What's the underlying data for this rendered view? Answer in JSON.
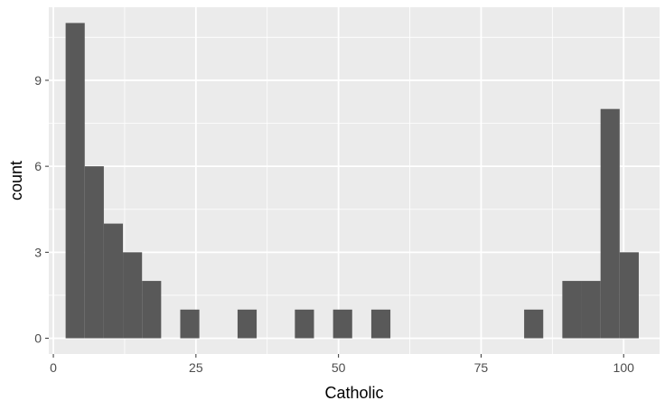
{
  "chart_data": {
    "type": "bar",
    "subtype": "histogram",
    "title": "",
    "xlabel": "Catholic",
    "ylabel": "count",
    "xlim": [
      -0.8,
      106.3
    ],
    "ylim": [
      -0.55,
      11.55
    ],
    "x_ticks": [
      0,
      25,
      50,
      75,
      100
    ],
    "y_ticks": [
      0,
      3,
      6,
      9
    ],
    "x_tick_labels": [
      "0",
      "25",
      "50",
      "75",
      "100"
    ],
    "y_tick_labels": [
      "0",
      "3",
      "6",
      "9"
    ],
    "bin_width": 3.35,
    "bins": [
      {
        "x0": 2.15,
        "x1": 5.5,
        "count": 11
      },
      {
        "x0": 5.5,
        "x1": 8.85,
        "count": 6
      },
      {
        "x0": 8.85,
        "x1": 12.2,
        "count": 4
      },
      {
        "x0": 12.2,
        "x1": 15.55,
        "count": 3
      },
      {
        "x0": 15.55,
        "x1": 18.9,
        "count": 2
      },
      {
        "x0": 22.25,
        "x1": 25.6,
        "count": 1
      },
      {
        "x0": 32.3,
        "x1": 35.65,
        "count": 1
      },
      {
        "x0": 42.35,
        "x1": 45.7,
        "count": 1
      },
      {
        "x0": 49.05,
        "x1": 52.4,
        "count": 1
      },
      {
        "x0": 55.75,
        "x1": 59.1,
        "count": 1
      },
      {
        "x0": 82.55,
        "x1": 85.9,
        "count": 1
      },
      {
        "x0": 89.25,
        "x1": 92.6,
        "count": 2
      },
      {
        "x0": 92.6,
        "x1": 95.95,
        "count": 2
      },
      {
        "x0": 95.95,
        "x1": 99.3,
        "count": 8
      },
      {
        "x0": 99.3,
        "x1": 102.65,
        "count": 3
      }
    ],
    "grid": true,
    "legend": "none",
    "colors": {
      "panel_background": "#ebebeb",
      "grid_major": "#ffffff",
      "bar_fill": "#595959",
      "tick_label": "#4d4d4d",
      "axis_title": "#000000"
    }
  }
}
